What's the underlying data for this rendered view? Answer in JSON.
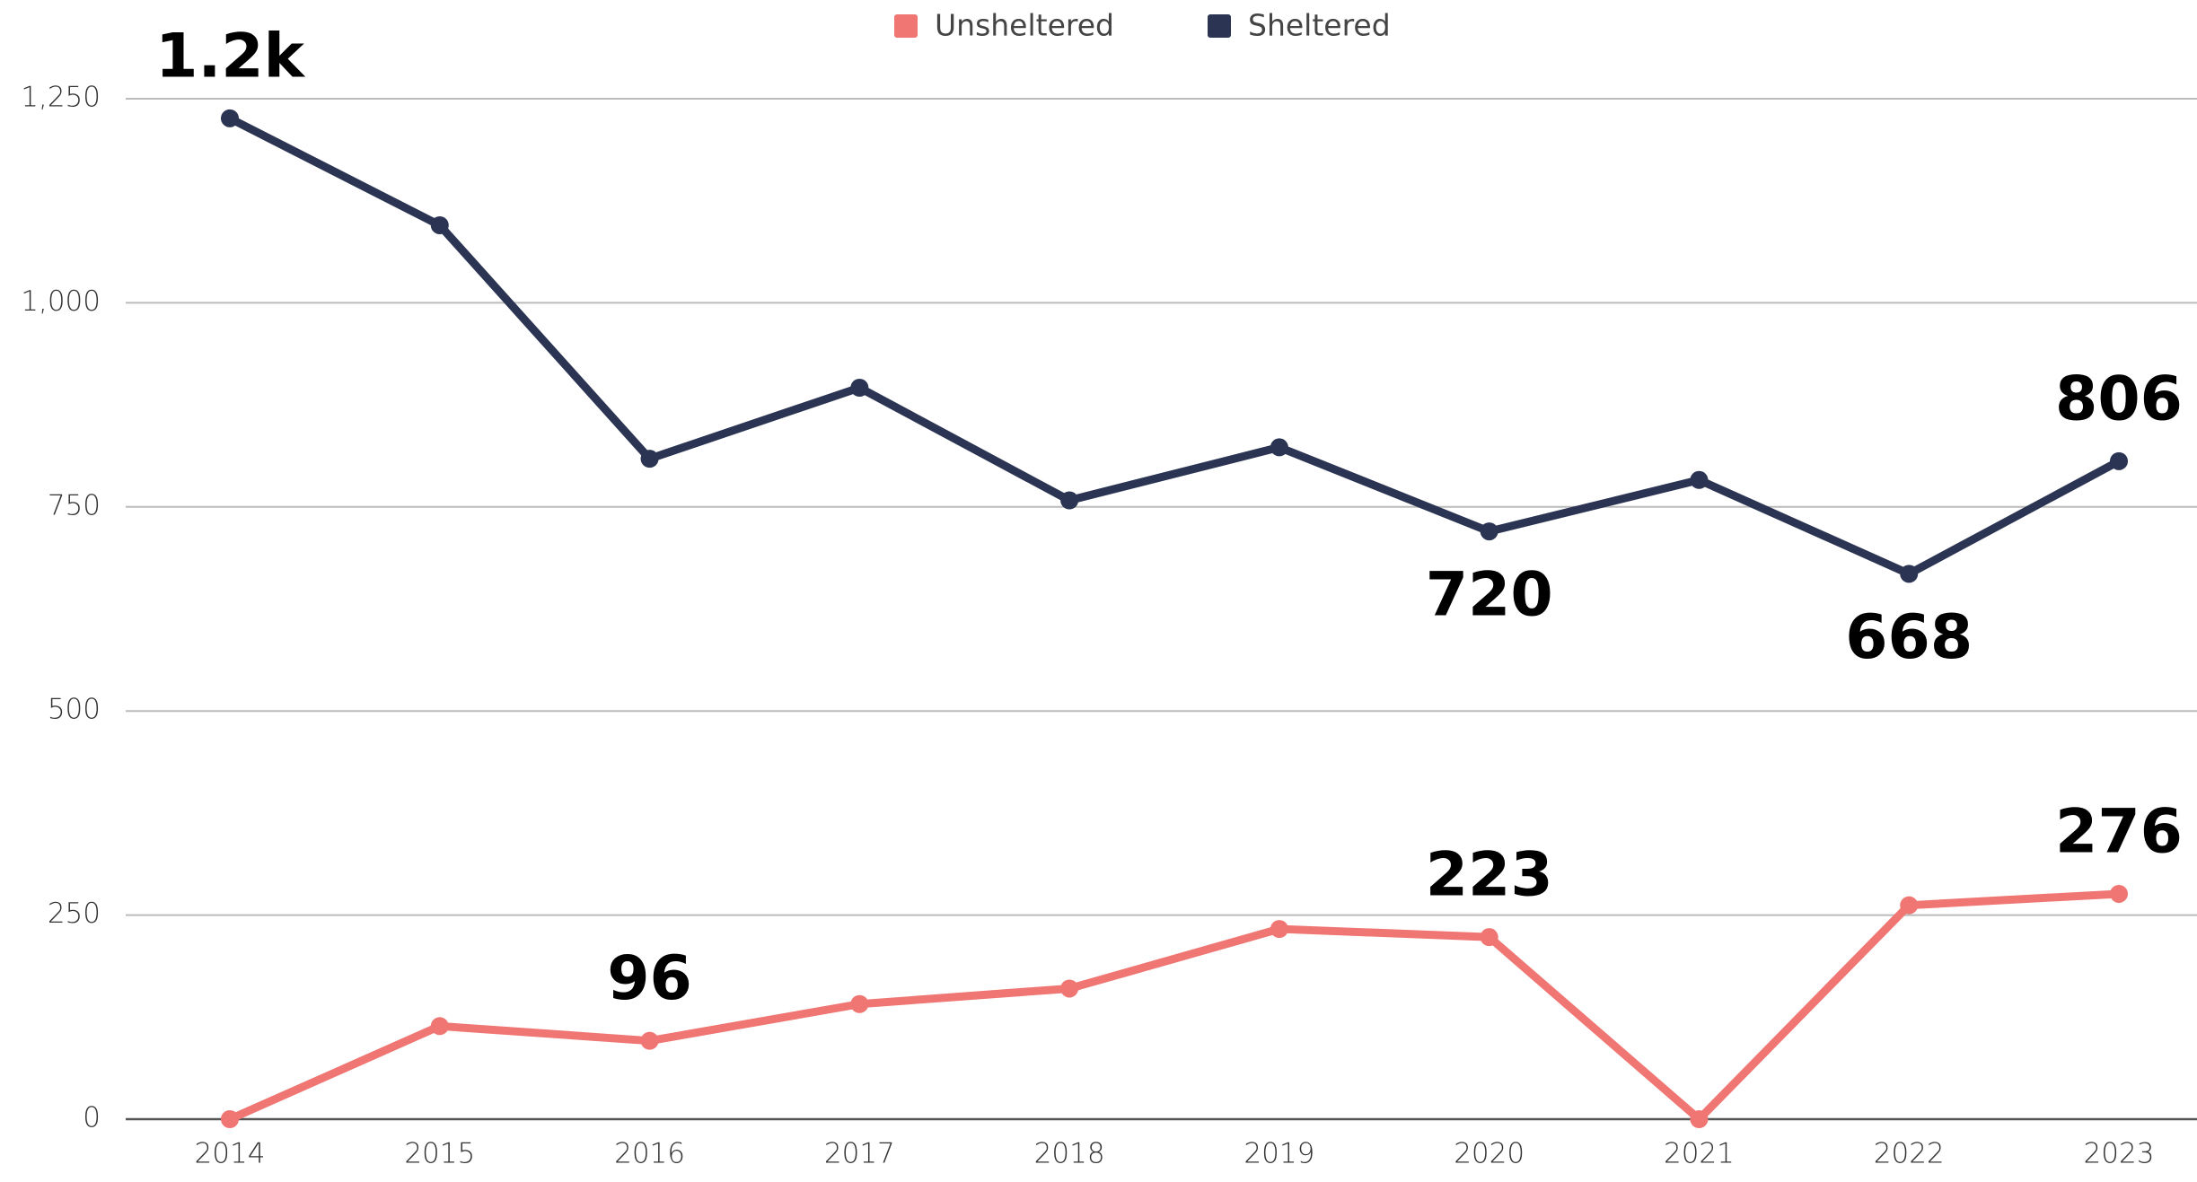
{
  "chart_data": {
    "type": "line",
    "categories": [
      "2014",
      "2015",
      "2016",
      "2017",
      "2018",
      "2019",
      "2020",
      "2021",
      "2022",
      "2023"
    ],
    "series": [
      {
        "name": "Unsheltered",
        "color": "#ef7672",
        "values": [
          0,
          114,
          96,
          141,
          160,
          233,
          223,
          0,
          262,
          276
        ],
        "value_labels": [
          null,
          null,
          "96",
          null,
          null,
          null,
          "223",
          null,
          null,
          "276"
        ]
      },
      {
        "name": "Sheltered",
        "color": "#2b3452",
        "values": [
          1226,
          1095,
          809,
          896,
          758,
          823,
          720,
          783,
          668,
          806
        ],
        "value_labels": [
          "1.2k",
          null,
          null,
          null,
          null,
          null,
          "720",
          null,
          "668",
          "806"
        ]
      }
    ],
    "ylim": [
      0,
      1250
    ],
    "yticks": [
      0,
      250,
      500,
      750,
      {
        "value": 1000,
        "label": "1,000"
      },
      {
        "value": 1250,
        "label": "1,250"
      }
    ],
    "grid": true,
    "legend": "top"
  }
}
